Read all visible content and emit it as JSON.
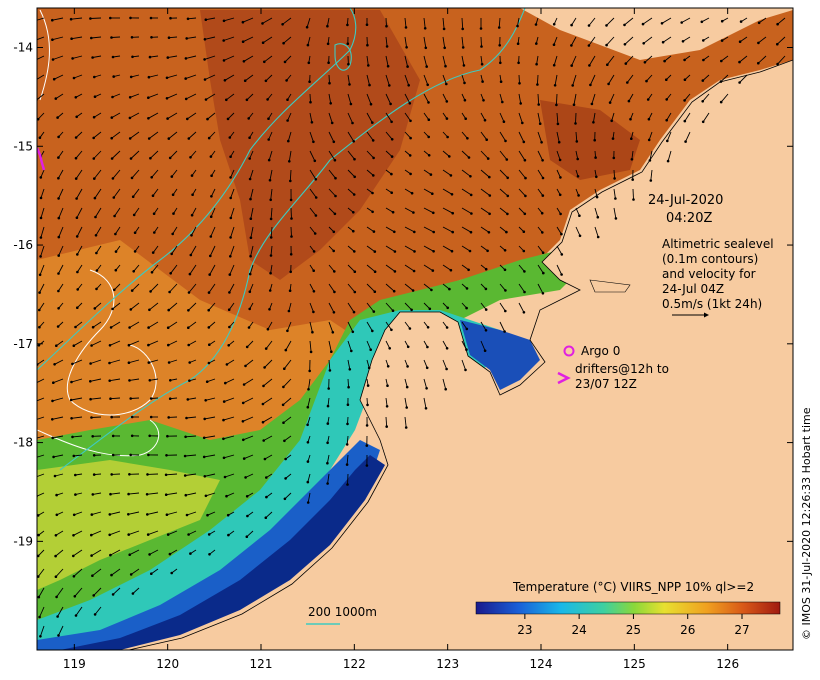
{
  "map": {
    "x_axis": {
      "ticks": [
        "119",
        "120",
        "121",
        "122",
        "123",
        "124",
        "125",
        "126"
      ],
      "range": [
        118.6,
        126.7
      ]
    },
    "y_axis": {
      "ticks": [
        "-14",
        "-15",
        "-16",
        "-17",
        "-18",
        "-19"
      ],
      "range": [
        -20.1,
        -13.6
      ]
    }
  },
  "annotations": {
    "date": "24-Jul-2020",
    "time": "04:20Z",
    "sealevel_lines": [
      "Altimetric sealevel",
      "(0.1m contours)",
      "and velocity for",
      "24-Jul 04Z",
      "0.5m/s (1kt 24h)"
    ],
    "argo_label": "Argo 0",
    "drifters_lines": [
      "drifters@12h to",
      "23/07 12Z"
    ],
    "depth_contour_label": "200  1000m"
  },
  "colorbar": {
    "title": "Temperature (°C) VIIRS_NPP 10% ql>=2",
    "ticks": [
      "23",
      "24",
      "25",
      "26",
      "27"
    ],
    "range": [
      22.1,
      27.7
    ]
  },
  "credit": "© IMOS 31-Jul-2020 12:26:33 Hobart time",
  "colors": {
    "land": "#f7cba0",
    "warm": "#c8561a",
    "hot": "#a03a10",
    "mid": "#e08a2a",
    "green": "#5ab832",
    "cyan": "#2fd0c8",
    "blue": "#1a5fc8",
    "deep_blue": "#0a2a8a",
    "contour": "#3ecbc0",
    "magenta": "#e020e0"
  }
}
